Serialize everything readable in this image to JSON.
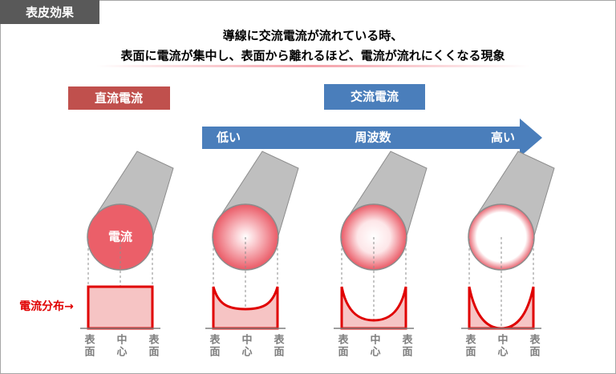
{
  "tag": "表皮効果",
  "title": {
    "line1": "導線に交流電流が流れている時、",
    "line2": "表面に電流が集中し、表面から離れるほど、電流が流れにくくなる現象"
  },
  "dc_label": "直流電流",
  "ac_label": "交流電流",
  "frequency_arrow": {
    "low": "低い",
    "label": "周波数",
    "high": "高い"
  },
  "circle_label": "電流",
  "distribution_label": "電流分布→",
  "panels": [
    {
      "labels": [
        "表面",
        "中心",
        "表面"
      ]
    },
    {
      "labels": [
        "表面",
        "中心",
        "表面"
      ]
    },
    {
      "labels": [
        "表面",
        "中心",
        "表面"
      ]
    },
    {
      "labels": [
        "表面",
        "中心",
        "表面"
      ]
    }
  ]
}
